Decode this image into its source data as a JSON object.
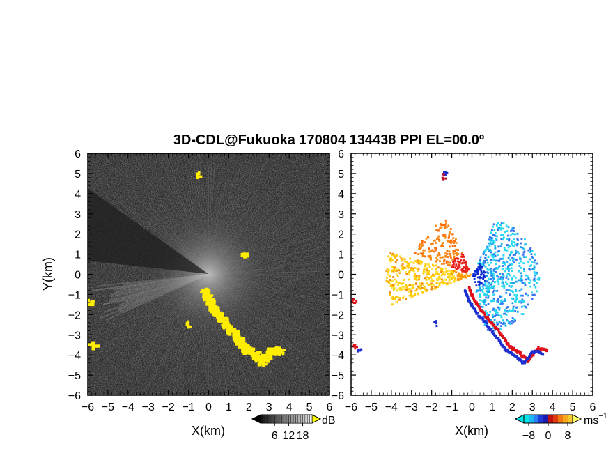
{
  "chart_data": [
    {
      "type": "heatmap",
      "panel": "left",
      "title": "3D-CDL@Fukuoka 170804 134438 PPI EL=00.0º",
      "xlabel": "X(km)",
      "ylabel": "Y(km)",
      "xlim": [
        -6,
        6
      ],
      "ylim": [
        -6,
        6
      ],
      "xticks": [
        "−6",
        "−5",
        "−4",
        "−3",
        "−2",
        "−1",
        "0",
        "1",
        "2",
        "3",
        "4",
        "5",
        "6"
      ],
      "yticks": [
        "6",
        "5",
        "4",
        "3",
        "2",
        "1",
        "0",
        "−1",
        "−2",
        "−3",
        "−4",
        "−5",
        "−6"
      ],
      "colorbar": {
        "label": "dB",
        "ticks": [
          "6",
          "12",
          "18"
        ],
        "tick_values": [
          6,
          12,
          18
        ],
        "range": [
          0,
          22
        ]
      },
      "features": [
        {
          "name": "yellow-echo-trail",
          "points": [
            [
              -0.3,
              -0.7
            ],
            [
              -0.1,
              -1.2
            ],
            [
              0.3,
              -1.8
            ],
            [
              0.8,
              -2.4
            ],
            [
              1.3,
              -3.0
            ],
            [
              1.7,
              -3.6
            ],
            [
              2.2,
              -3.9
            ],
            [
              2.6,
              -4.3
            ],
            [
              3.1,
              -3.7
            ],
            [
              3.6,
              -3.8
            ]
          ]
        }
      ]
    },
    {
      "type": "heatmap",
      "panel": "right",
      "xlabel": "X(km)",
      "xlim": [
        -6,
        6
      ],
      "ylim": [
        -6,
        6
      ],
      "xticks": [
        "−6",
        "−5",
        "−4",
        "−3",
        "−2",
        "−1",
        "0",
        "1",
        "2",
        "3",
        "4",
        "5",
        "6"
      ],
      "yticks": [
        "6",
        "5",
        "4",
        "3",
        "2",
        "1",
        "0",
        "−1",
        "−2",
        "−3",
        "−4",
        "−5",
        "−6"
      ],
      "colorbar": {
        "label": "ms",
        "label_superscript": "−1",
        "ticks": [
          "−8",
          "0",
          "8"
        ],
        "tick_values": [
          -8,
          0,
          8
        ],
        "range": [
          -10,
          10
        ]
      },
      "features": [
        {
          "name": "receding-west-sector",
          "velocity_sign": "positive"
        },
        {
          "name": "approaching-east-sector",
          "velocity_sign": "negative"
        }
      ]
    }
  ],
  "colors": {
    "echo": "#ffee00",
    "background_dark": "#2a2a2a",
    "velocity_negative": "#1e2fd0",
    "velocity_cyan": "#29d9f0",
    "velocity_positive": "#f08a10",
    "velocity_strong_positive": "#e0101a"
  }
}
